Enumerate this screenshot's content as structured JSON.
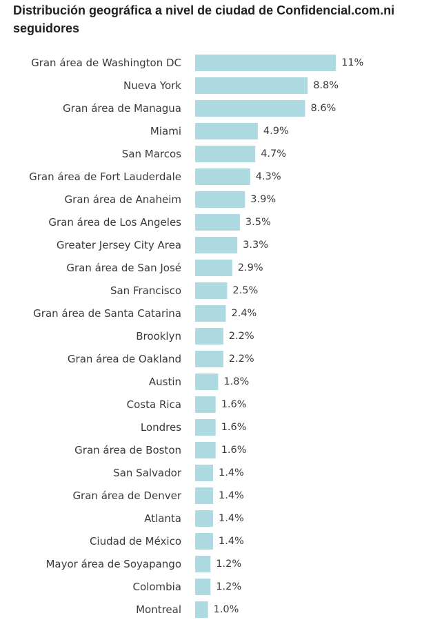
{
  "chart_data": {
    "type": "bar",
    "orientation": "horizontal",
    "title": "Distribución geográfica a nivel de ciudad de Confidencial.com.ni seguidores",
    "bar_color": "#add9e0",
    "categories": [
      "Gran área de Washington DC",
      "Nueva York",
      "Gran área de Managua",
      "Miami",
      "San Marcos",
      "Gran área de Fort Lauderdale",
      "Gran área de Anaheim",
      "Gran área de Los Angeles",
      "Greater Jersey City Area",
      "Gran área de San José",
      "San Francisco",
      "Gran área de Santa Catarina",
      "Brooklyn",
      "Gran área de Oakland",
      "Austin",
      "Costa Rica",
      "Londres",
      "Gran área de Boston",
      "San Salvador",
      "Gran área de Denver",
      "Atlanta",
      "Ciudad de México",
      "Mayor área de Soyapango",
      "Colombia",
      "Montreal"
    ],
    "values": [
      11,
      8.8,
      8.6,
      4.9,
      4.7,
      4.3,
      3.9,
      3.5,
      3.3,
      2.9,
      2.5,
      2.4,
      2.2,
      2.2,
      1.8,
      1.6,
      1.6,
      1.6,
      1.4,
      1.4,
      1.4,
      1.4,
      1.2,
      1.2,
      1.0
    ],
    "value_labels": [
      "11%",
      "8.8%",
      "8.6%",
      "4.9%",
      "4.7%",
      "4.3%",
      "3.9%",
      "3.5%",
      "3.3%",
      "2.9%",
      "2.5%",
      "2.4%",
      "2.2%",
      "2.2%",
      "1.8%",
      "1.6%",
      "1.6%",
      "1.6%",
      "1.4%",
      "1.4%",
      "1.4%",
      "1.4%",
      "1.2%",
      "1.2%",
      "1.0%"
    ],
    "unit": "%",
    "grid": false,
    "legend": "none"
  }
}
